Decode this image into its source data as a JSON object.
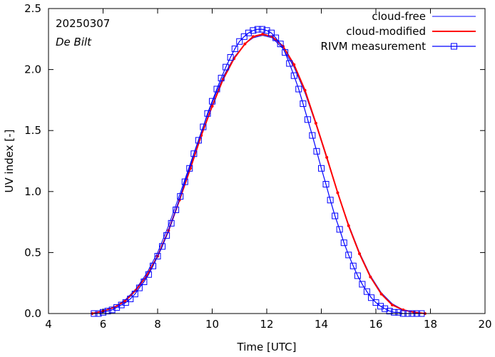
{
  "chart_data": {
    "type": "line",
    "title": "",
    "xlabel": "Time  [UTC]",
    "ylabel": "UV index  [-]",
    "xlim": [
      4,
      20
    ],
    "ylim": [
      0.0,
      2.5
    ],
    "x_ticks": [
      4,
      6,
      8,
      10,
      12,
      14,
      16,
      18,
      20
    ],
    "x_tick_labels": [
      "4",
      "6",
      "8",
      "10",
      "12",
      "14",
      "16",
      "18",
      "20"
    ],
    "y_ticks": [
      0.0,
      0.5,
      1.0,
      1.5,
      2.0,
      2.5
    ],
    "y_tick_labels": [
      "0.0",
      "0.5",
      "1.0",
      "1.5",
      "2.0",
      "2.5"
    ],
    "grid": false,
    "legend_position": "top-right",
    "annotations": {
      "date": "20250307",
      "station": "De Bilt"
    },
    "colors": {
      "cloud_free": "#0000ff",
      "cloud_modified": "#ff0000",
      "rivm": "#0000ff"
    },
    "series": [
      {
        "name": "cloud-free",
        "style": "line",
        "x": [
          5.6,
          6.0,
          6.4,
          6.8,
          7.2,
          7.6,
          8.0,
          8.4,
          8.8,
          9.2,
          9.6,
          10.0,
          10.4,
          10.8,
          11.2,
          11.5,
          11.85,
          12.2,
          12.6,
          13.0,
          13.4,
          13.8,
          14.2,
          14.6,
          15.0,
          15.4,
          15.8,
          16.2,
          16.6,
          17.0,
          17.4,
          17.8
        ],
        "y": [
          0.0,
          0.02,
          0.05,
          0.11,
          0.2,
          0.33,
          0.5,
          0.72,
          0.97,
          1.23,
          1.49,
          1.73,
          1.94,
          2.1,
          2.21,
          2.26,
          2.28,
          2.26,
          2.17,
          2.02,
          1.81,
          1.55,
          1.27,
          0.99,
          0.73,
          0.5,
          0.31,
          0.17,
          0.08,
          0.03,
          0.01,
          0.0
        ]
      },
      {
        "name": "cloud-modified",
        "style": "line-dots",
        "x": [
          5.6,
          6.0,
          6.4,
          6.8,
          7.2,
          7.6,
          8.0,
          8.4,
          8.8,
          9.2,
          9.6,
          10.0,
          10.4,
          10.8,
          11.2,
          11.5,
          11.85,
          12.2,
          12.6,
          13.0,
          13.4,
          13.8,
          14.2,
          14.6,
          15.0,
          15.4,
          15.8,
          16.2,
          16.6,
          17.0,
          17.4,
          17.8
        ],
        "y": [
          0.0,
          0.02,
          0.05,
          0.1,
          0.19,
          0.31,
          0.47,
          0.68,
          0.93,
          1.19,
          1.46,
          1.7,
          1.92,
          2.09,
          2.21,
          2.27,
          2.29,
          2.27,
          2.19,
          2.04,
          1.83,
          1.56,
          1.28,
          0.99,
          0.72,
          0.49,
          0.3,
          0.16,
          0.07,
          0.03,
          0.01,
          0.0
        ]
      },
      {
        "name": "RIVM measurement",
        "style": "line-squares",
        "x": [
          5.67,
          5.83,
          6.0,
          6.17,
          6.33,
          6.5,
          6.67,
          6.83,
          7.0,
          7.17,
          7.33,
          7.5,
          7.67,
          7.83,
          8.0,
          8.17,
          8.33,
          8.5,
          8.67,
          8.83,
          9.0,
          9.17,
          9.33,
          9.5,
          9.67,
          9.83,
          10.0,
          10.17,
          10.33,
          10.5,
          10.67,
          10.83,
          11.0,
          11.17,
          11.33,
          11.5,
          11.67,
          11.83,
          12.0,
          12.17,
          12.33,
          12.5,
          12.67,
          12.83,
          13.0,
          13.17,
          13.33,
          13.5,
          13.67,
          13.83,
          14.0,
          14.17,
          14.33,
          14.5,
          14.67,
          14.83,
          15.0,
          15.17,
          15.33,
          15.5,
          15.67,
          15.83,
          16.0,
          16.17,
          16.33,
          16.5,
          16.67,
          16.83,
          17.0,
          17.17,
          17.33,
          17.5,
          17.67
        ],
        "y": [
          0.0,
          0.0,
          0.01,
          0.02,
          0.03,
          0.05,
          0.07,
          0.09,
          0.12,
          0.16,
          0.21,
          0.26,
          0.32,
          0.39,
          0.47,
          0.55,
          0.64,
          0.74,
          0.85,
          0.96,
          1.08,
          1.19,
          1.31,
          1.42,
          1.53,
          1.64,
          1.74,
          1.84,
          1.93,
          2.02,
          2.1,
          2.17,
          2.23,
          2.27,
          2.3,
          2.32,
          2.33,
          2.33,
          2.32,
          2.3,
          2.26,
          2.21,
          2.14,
          2.05,
          1.95,
          1.84,
          1.72,
          1.59,
          1.46,
          1.33,
          1.19,
          1.06,
          0.93,
          0.8,
          0.69,
          0.58,
          0.48,
          0.39,
          0.31,
          0.24,
          0.18,
          0.13,
          0.09,
          0.06,
          0.04,
          0.02,
          0.01,
          0.01,
          0.0,
          0.0,
          0.0,
          0.0,
          0.0
        ]
      }
    ]
  }
}
